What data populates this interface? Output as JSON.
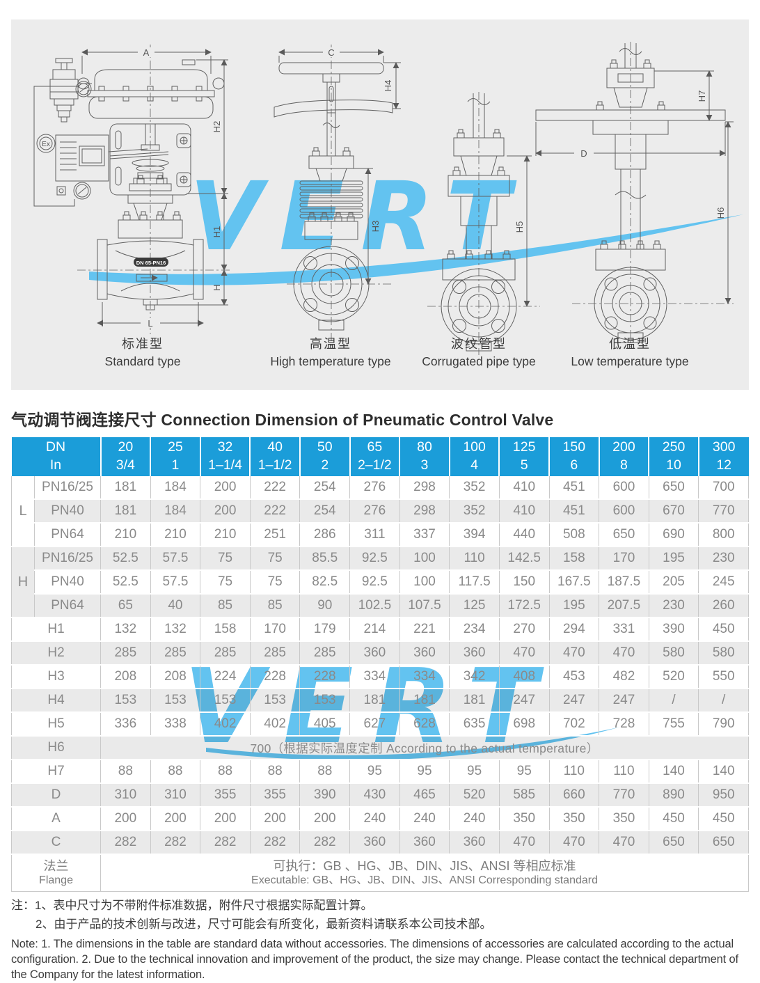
{
  "drawings": {
    "panel_bg": "#ececec",
    "watermark_text": "VERT",
    "watermark_color": "#63c3f0",
    "valve_tag": "DN 65-PN16",
    "ex_label": "Ex",
    "dim_labels": {
      "a": "A",
      "h2": "H2",
      "h1": "H1",
      "h": "H",
      "l": "L",
      "c": "C",
      "h4": "H4",
      "h3": "H3",
      "h5": "H5",
      "d": "D",
      "h7": "H7",
      "h6": "H6"
    },
    "captions": [
      {
        "cn": "标准型",
        "en": "Standard type"
      },
      {
        "cn": "高温型",
        "en": "High temperature type"
      },
      {
        "cn": "波纹管型",
        "en": "Corrugated pipe type"
      },
      {
        "cn": "低温型",
        "en": "Low temperature type"
      }
    ]
  },
  "title": {
    "text": "气动调节阀连接尺寸 Connection Dimension of Pneumatic Control Valve"
  },
  "table": {
    "header_bg": "#1b9dd9",
    "header": {
      "col0_line1": "DN",
      "col0_line2": "In",
      "sizes": [
        {
          "dn": "20",
          "inch": "3/4"
        },
        {
          "dn": "25",
          "inch": "1"
        },
        {
          "dn": "32",
          "inch": "1–1/4"
        },
        {
          "dn": "40",
          "inch": "1–1/2"
        },
        {
          "dn": "50",
          "inch": "2"
        },
        {
          "dn": "65",
          "inch": "2–1/2"
        },
        {
          "dn": "80",
          "inch": "3"
        },
        {
          "dn": "100",
          "inch": "4"
        },
        {
          "dn": "125",
          "inch": "5"
        },
        {
          "dn": "150",
          "inch": "6"
        },
        {
          "dn": "200",
          "inch": "8"
        },
        {
          "dn": "250",
          "inch": "10"
        },
        {
          "dn": "300",
          "inch": "12"
        }
      ]
    },
    "rows": [
      {
        "group": "L",
        "sub": "PN16/25",
        "values": [
          "181",
          "184",
          "200",
          "222",
          "254",
          "276",
          "298",
          "352",
          "410",
          "451",
          "600",
          "650",
          "700"
        ]
      },
      {
        "group": "L",
        "sub": "PN40",
        "values": [
          "181",
          "184",
          "200",
          "222",
          "254",
          "276",
          "298",
          "352",
          "410",
          "451",
          "600",
          "670",
          "770"
        ]
      },
      {
        "group": "L",
        "sub": "PN64",
        "values": [
          "210",
          "210",
          "210",
          "251",
          "286",
          "311",
          "337",
          "394",
          "440",
          "508",
          "650",
          "690",
          "800"
        ]
      },
      {
        "group": "H",
        "sub": "PN16/25",
        "values": [
          "52.5",
          "57.5",
          "75",
          "75",
          "85.5",
          "92.5",
          "100",
          "110",
          "142.5",
          "158",
          "170",
          "195",
          "230"
        ]
      },
      {
        "group": "H",
        "sub": "PN40",
        "values": [
          "52.5",
          "57.5",
          "75",
          "75",
          "82.5",
          "92.5",
          "100",
          "117.5",
          "150",
          "167.5",
          "187.5",
          "205",
          "245"
        ]
      },
      {
        "group": "H",
        "sub": "PN64",
        "values": [
          "65",
          "40",
          "85",
          "85",
          "90",
          "102.5",
          "107.5",
          "125",
          "172.5",
          "195",
          "207.5",
          "230",
          "260"
        ]
      },
      {
        "label": "H1",
        "values": [
          "132",
          "132",
          "158",
          "170",
          "179",
          "214",
          "221",
          "234",
          "270",
          "294",
          "331",
          "390",
          "450"
        ]
      },
      {
        "label": "H2",
        "values": [
          "285",
          "285",
          "285",
          "285",
          "285",
          "360",
          "360",
          "360",
          "470",
          "470",
          "470",
          "580",
          "580"
        ]
      },
      {
        "label": "H3",
        "values": [
          "208",
          "208",
          "224",
          "228",
          "228",
          "334",
          "334",
          "342",
          "408",
          "453",
          "482",
          "520",
          "550"
        ]
      },
      {
        "label": "H4",
        "values": [
          "153",
          "153",
          "153",
          "153",
          "153",
          "181",
          "181",
          "181",
          "247",
          "247",
          "247",
          "/",
          "/"
        ]
      },
      {
        "label": "H5",
        "values": [
          "336",
          "338",
          "402",
          "402",
          "405",
          "627",
          "628",
          "635",
          "698",
          "702",
          "728",
          "755",
          "790"
        ]
      },
      {
        "label": "H6",
        "merged": "700（根据实际温度定制 According to the actual temperature）"
      },
      {
        "label": "H7",
        "values": [
          "88",
          "88",
          "88",
          "88",
          "88",
          "95",
          "95",
          "95",
          "95",
          "110",
          "110",
          "140",
          "140"
        ]
      },
      {
        "label": "D",
        "values": [
          "310",
          "310",
          "355",
          "355",
          "390",
          "430",
          "465",
          "520",
          "585",
          "660",
          "770",
          "890",
          "950"
        ]
      },
      {
        "label": "A",
        "values": [
          "200",
          "200",
          "200",
          "200",
          "200",
          "240",
          "240",
          "240",
          "350",
          "350",
          "350",
          "450",
          "450"
        ]
      },
      {
        "label": "C",
        "values": [
          "282",
          "282",
          "282",
          "282",
          "282",
          "360",
          "360",
          "360",
          "470",
          "470",
          "470",
          "650",
          "650"
        ]
      }
    ],
    "flange": {
      "label_cn": "法兰",
      "label_en": "Flange",
      "line1": "可执行：GB 、HG、JB、DIN、JIS、ANSI 等相应标准",
      "line2": "Executable: GB、HG、JB、DIN、JIS、ANSI Corresponding standard"
    }
  },
  "notes": {
    "cn_1": "注：1、表中尺寸为不带附件标准数据，附件尺寸根据实际配置计算。",
    "cn_2": "2、由于产品的技术创新与改进，尺寸可能会有所变化，最新资料请联系本公司技术部。",
    "en": "Note: 1. The dimensions in the table are standard data without accessories. The dimensions of accessories are calculated according to the actual configuration. 2. Due to the technical innovation and improvement of the product, the size may change. Please contact the technical department of the Company for the latest information."
  }
}
